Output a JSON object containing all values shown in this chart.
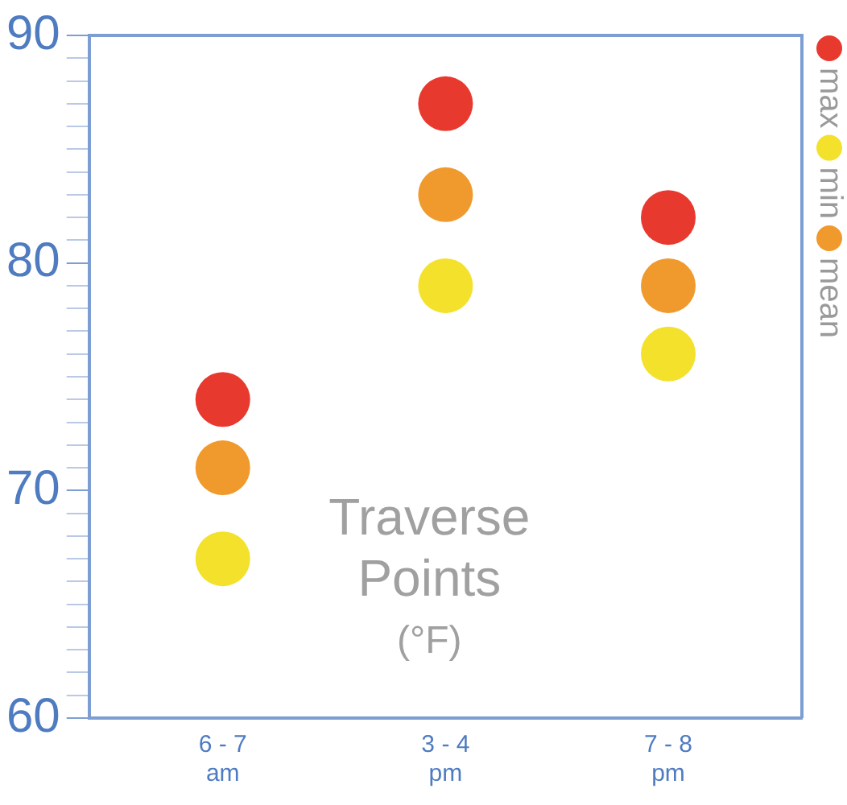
{
  "chart_data": {
    "type": "scatter",
    "title": "Traverse Points (°F)",
    "categories": [
      "6 - 7\nam",
      "3 - 4\npm",
      "7 - 8\npm"
    ],
    "series": [
      {
        "name": "max",
        "color": "#e8392f",
        "values": [
          74,
          87,
          82
        ]
      },
      {
        "name": "min",
        "color": "#f3e12c",
        "values": [
          67,
          79,
          76
        ]
      },
      {
        "name": "mean",
        "color": "#f09a2e",
        "values": [
          71,
          83,
          79
        ]
      }
    ],
    "ylim": [
      60,
      90
    ],
    "yticks": [
      60,
      {
        "value": 61,
        "label": null
      },
      {
        "value": 62,
        "label": null
      },
      {
        "value": 63,
        "label": null
      },
      {
        "value": 64,
        "label": null
      },
      {
        "value": 65,
        "label": null
      },
      {
        "value": 66,
        "label": null
      },
      {
        "value": 67,
        "label": null
      },
      {
        "value": 68,
        "label": null
      },
      {
        "value": 69,
        "label": null
      },
      70,
      {
        "value": 71,
        "label": null
      },
      {
        "value": 72,
        "label": null
      },
      {
        "value": 73,
        "label": null
      },
      {
        "value": 74,
        "label": null
      },
      {
        "value": 75,
        "label": null
      },
      {
        "value": 76,
        "label": null
      },
      {
        "value": 77,
        "label": null
      },
      {
        "value": 78,
        "label": null
      },
      {
        "value": 79,
        "label": null
      },
      80,
      {
        "value": 81,
        "label": null
      },
      {
        "value": 82,
        "label": null
      },
      {
        "value": 83,
        "label": null
      },
      {
        "value": 84,
        "label": null
      },
      {
        "value": 85,
        "label": null
      },
      {
        "value": 86,
        "label": null
      },
      {
        "value": 87,
        "label": null
      },
      {
        "value": 88,
        "label": null
      },
      {
        "value": 89,
        "label": null
      },
      90
    ],
    "grid": false,
    "legend": "right",
    "marker": "circle"
  }
}
